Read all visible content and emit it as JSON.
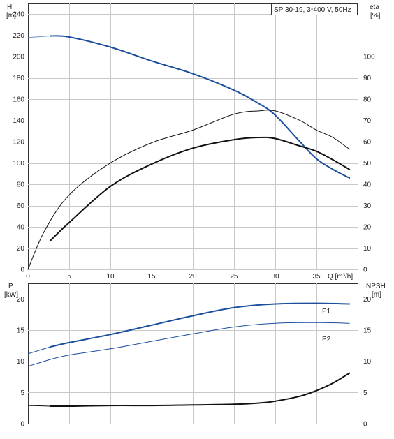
{
  "chart_data": [
    {
      "type": "line",
      "title": "SP 30-19, 3*400 V, 50Hz",
      "x_axis": {
        "label": "Q [m³/h]",
        "range": [
          0,
          40
        ],
        "ticks": [
          0,
          5,
          10,
          15,
          20,
          25,
          30,
          35
        ]
      },
      "y_axis_left": {
        "label": "H",
        "unit": "[m]",
        "range": [
          0,
          250
        ],
        "ticks": [
          0,
          20,
          40,
          60,
          80,
          100,
          120,
          140,
          160,
          180,
          200,
          220,
          240
        ]
      },
      "y_axis_right": {
        "label": "eta",
        "unit": "[%]",
        "range": [
          0,
          125
        ],
        "ticks": [
          0,
          10,
          20,
          30,
          40,
          50,
          60,
          70,
          80,
          90,
          100
        ]
      },
      "grid": true,
      "series": [
        {
          "name": "H",
          "axis": "left",
          "color": "#1c4f9c",
          "extension_color": "#6f93c4",
          "extension": [
            [
              0,
              218
            ],
            [
              2.7,
              219.5
            ]
          ],
          "points": [
            [
              2.7,
              219.5
            ],
            [
              5,
              218.5
            ],
            [
              10,
              209
            ],
            [
              15,
              196
            ],
            [
              20,
              184
            ],
            [
              25,
              168.5
            ],
            [
              28,
              156
            ],
            [
              30,
              145
            ],
            [
              33,
              120
            ],
            [
              35,
              104
            ],
            [
              37,
              94
            ],
            [
              39,
              86
            ]
          ]
        },
        {
          "name": "eta",
          "axis": "right",
          "color": "#111111",
          "points": [
            [
              0,
              0
            ],
            [
              2,
              18
            ],
            [
              5,
              35
            ],
            [
              10,
              50
            ],
            [
              15,
              59.5
            ],
            [
              20,
              65.5
            ],
            [
              25,
              73
            ],
            [
              28,
              74.5
            ],
            [
              30,
              74.5
            ],
            [
              33,
              70
            ],
            [
              35,
              65.5
            ],
            [
              37,
              62
            ],
            [
              39,
              56.5
            ]
          ]
        },
        {
          "name": "eta",
          "axis": "right",
          "color": "#111111",
          "points": [
            [
              2.7,
              13.5
            ],
            [
              5,
              22
            ],
            [
              10,
              39
            ],
            [
              15,
              49.5
            ],
            [
              20,
              57
            ],
            [
              25,
              61
            ],
            [
              28,
              62
            ],
            [
              30,
              61.5
            ],
            [
              33,
              58
            ],
            [
              35,
              55.5
            ],
            [
              37,
              51.5
            ],
            [
              39,
              47
            ]
          ]
        }
      ]
    },
    {
      "type": "line",
      "x_axis": {
        "range": [
          0,
          40
        ]
      },
      "y_axis_left": {
        "label": "P",
        "unit": "[kW]",
        "range": [
          0,
          22.5
        ],
        "ticks": [
          0,
          5,
          10,
          15,
          20
        ]
      },
      "y_axis_right": {
        "label": "NPSH",
        "unit": "[m]",
        "range": [
          0,
          22.5
        ],
        "ticks": [
          0,
          5,
          10,
          15,
          20
        ]
      },
      "grid": true,
      "series": [
        {
          "name": "P1",
          "axis": "left",
          "color": "#1c4f9c",
          "extension": [
            [
              0,
              11.2
            ],
            [
              2.7,
              12.3
            ]
          ],
          "points": [
            [
              2.7,
              12.3
            ],
            [
              5,
              13.0
            ],
            [
              10,
              14.3
            ],
            [
              15,
              15.8
            ],
            [
              20,
              17.3
            ],
            [
              25,
              18.6
            ],
            [
              30,
              19.2
            ],
            [
              35,
              19.3
            ],
            [
              39,
              19.2
            ]
          ]
        },
        {
          "name": "P2",
          "axis": "left",
          "color": "#1c4f9c",
          "extension": [
            [
              0,
              9.2
            ],
            [
              2.7,
              10.3
            ]
          ],
          "points": [
            [
              2.7,
              10.3
            ],
            [
              5,
              11.0
            ],
            [
              10,
              12.0
            ],
            [
              15,
              13.2
            ],
            [
              20,
              14.4
            ],
            [
              25,
              15.5
            ],
            [
              30,
              16.1
            ],
            [
              35,
              16.2
            ],
            [
              39,
              16.1
            ]
          ]
        },
        {
          "name": "NPSH",
          "axis": "right",
          "color": "#111111",
          "extension": [
            [
              0,
              2.9
            ],
            [
              2.7,
              2.8
            ]
          ],
          "points": [
            [
              2.7,
              2.8
            ],
            [
              5,
              2.8
            ],
            [
              10,
              2.9
            ],
            [
              15,
              2.9
            ],
            [
              20,
              3.0
            ],
            [
              25,
              3.1
            ],
            [
              28,
              3.3
            ],
            [
              30,
              3.6
            ],
            [
              33,
              4.4
            ],
            [
              35,
              5.3
            ],
            [
              37,
              6.5
            ],
            [
              39,
              8.1
            ]
          ]
        }
      ]
    }
  ]
}
